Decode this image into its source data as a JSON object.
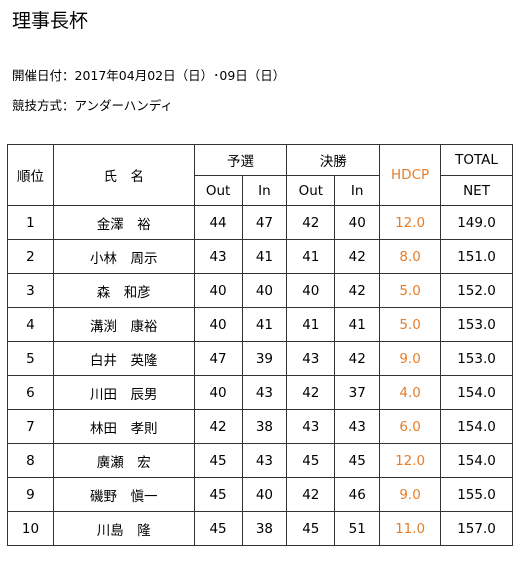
{
  "title": "理事長杯",
  "meta": {
    "date_line": "開催日付：2017年04月02日（日）･09日（日）",
    "format_line": "競技方式：アンダーハンディ"
  },
  "table": {
    "headers": {
      "rank": "順位",
      "name": "氏　名",
      "qualifier": "予選",
      "final": "決勝",
      "hdcp": "HDCP",
      "total": "TOTAL",
      "out": "Out",
      "in": "In",
      "net": "NET"
    },
    "rows": [
      {
        "rank": "1",
        "name": "金澤　裕",
        "q_out": "44",
        "q_in": "47",
        "f_out": "42",
        "f_in": "40",
        "hdcp": "12.0",
        "net": "149.0"
      },
      {
        "rank": "2",
        "name": "小林　周示",
        "q_out": "43",
        "q_in": "41",
        "f_out": "41",
        "f_in": "42",
        "hdcp": "8.0",
        "net": "151.0"
      },
      {
        "rank": "3",
        "name": "森　和彦",
        "q_out": "40",
        "q_in": "40",
        "f_out": "40",
        "f_in": "42",
        "hdcp": "5.0",
        "net": "152.0"
      },
      {
        "rank": "4",
        "name": "溝渕　康裕",
        "q_out": "40",
        "q_in": "41",
        "f_out": "41",
        "f_in": "41",
        "hdcp": "5.0",
        "net": "153.0"
      },
      {
        "rank": "5",
        "name": "白井　英隆",
        "q_out": "47",
        "q_in": "39",
        "f_out": "43",
        "f_in": "42",
        "hdcp": "9.0",
        "net": "153.0"
      },
      {
        "rank": "6",
        "name": "川田　辰男",
        "q_out": "40",
        "q_in": "43",
        "f_out": "42",
        "f_in": "37",
        "hdcp": "4.0",
        "net": "154.0"
      },
      {
        "rank": "7",
        "name": "林田　孝則",
        "q_out": "42",
        "q_in": "38",
        "f_out": "43",
        "f_in": "43",
        "hdcp": "6.0",
        "net": "154.0"
      },
      {
        "rank": "8",
        "name": "廣瀬　宏",
        "q_out": "45",
        "q_in": "43",
        "f_out": "45",
        "f_in": "45",
        "hdcp": "12.0",
        "net": "154.0"
      },
      {
        "rank": "9",
        "name": "磯野　愼一",
        "q_out": "45",
        "q_in": "40",
        "f_out": "42",
        "f_in": "46",
        "hdcp": "9.0",
        "net": "155.0"
      },
      {
        "rank": "10",
        "name": "川島　隆",
        "q_out": "45",
        "q_in": "38",
        "f_out": "45",
        "f_in": "51",
        "hdcp": "11.0",
        "net": "157.0"
      }
    ]
  },
  "colors": {
    "hdcp_text": "#e57d2a",
    "border": "#333333"
  }
}
